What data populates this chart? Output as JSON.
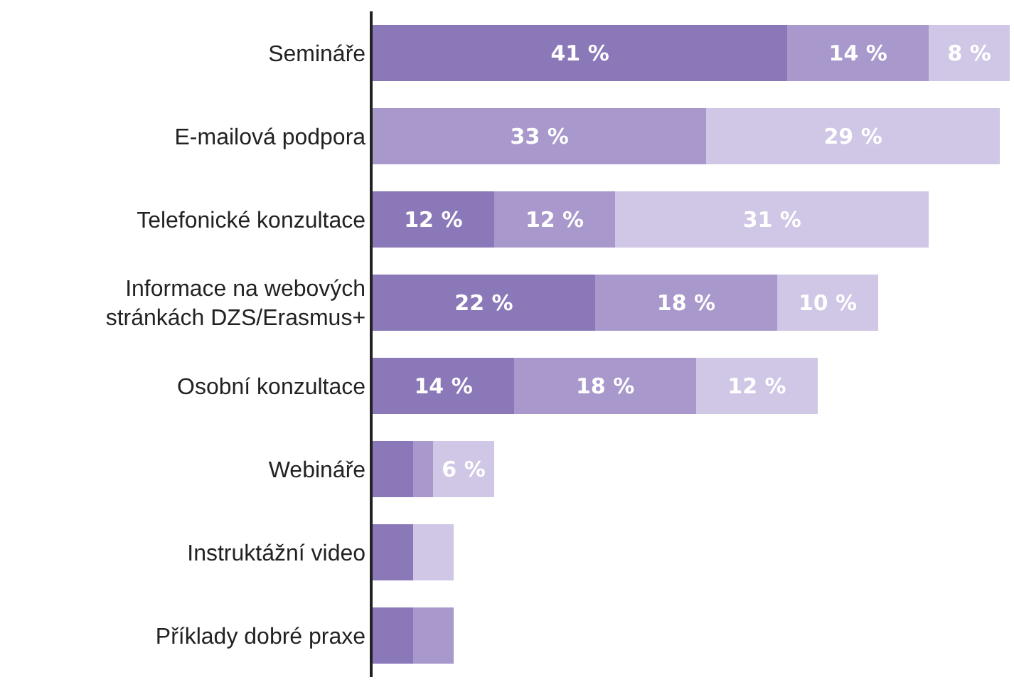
{
  "chart_data": {
    "type": "bar",
    "orientation": "horizontal",
    "stacked": true,
    "categories": [
      "Semináře",
      "E-mailová podpora",
      "Telefonické konzultace",
      "Informace na webových\nstránkách DZS/Erasmus+",
      "Osobní konzultace",
      "Webináře",
      "Instruktážní video",
      "Příklady dobré praxe"
    ],
    "series": [
      {
        "color": "#8b78b8",
        "values": [
          41,
          null,
          12,
          22,
          14,
          4,
          4,
          4
        ],
        "value_labels": [
          "41 %",
          null,
          "12 %",
          "22 %",
          "14 %",
          null,
          null,
          null
        ]
      },
      {
        "color": "#a898cc",
        "values": [
          14,
          33,
          12,
          18,
          18,
          2,
          null,
          4
        ],
        "value_labels": [
          "14 %",
          "33 %",
          "12 %",
          "18 %",
          "18 %",
          null,
          null,
          null
        ]
      },
      {
        "color": "#d0c6e5",
        "values": [
          8,
          29,
          31,
          10,
          12,
          6,
          4,
          null
        ],
        "value_labels": [
          "8 %",
          "29 %",
          "31 %",
          "10 %",
          "12 %",
          "6 %",
          null,
          null
        ]
      }
    ],
    "xlim": [
      0,
      63
    ],
    "tick_labels": "y"
  }
}
